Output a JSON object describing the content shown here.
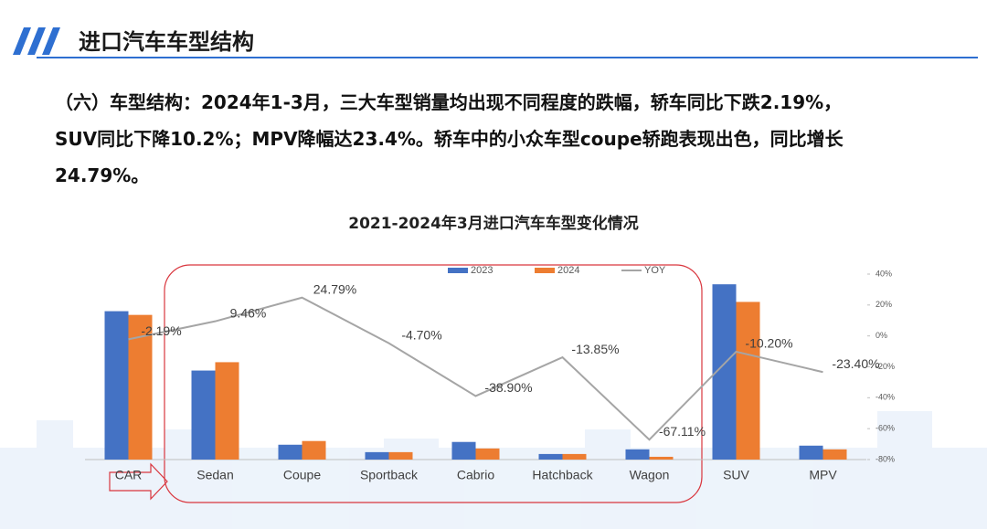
{
  "header": {
    "title": "进口汽车车型结构"
  },
  "paragraph": {
    "lines": [
      "（六）车型结构：2024年1-3月，三大车型销量均出现不同程度的跌幅，轿车同比下跌2.19%，",
      "SUV同比下降10.2%；MPV降幅达23.4%。轿车中的小众车型coupe轿跑表现出色，同比增长",
      "24.79%。"
    ]
  },
  "chart_data": {
    "type": "bar",
    "title": "2021-2024年3月进口汽车车型变化情况",
    "categories": [
      "CAR",
      "Sedan",
      "Coupe",
      "Sportback",
      "Cabrio",
      "Hatchback",
      "Wagon",
      "SUV",
      "MPV"
    ],
    "series": [
      {
        "name": "2023",
        "color": "#4472c4",
        "values": [
          160,
          96,
          16,
          8,
          19,
          6,
          11,
          189,
          15
        ]
      },
      {
        "name": "2024",
        "color": "#ed7d31",
        "values": [
          156,
          105,
          20,
          8,
          12,
          6,
          3,
          170,
          11
        ]
      },
      {
        "name": "YOY",
        "color": "#a5a5a5",
        "axis": "y2",
        "values": [
          -2.19,
          9.46,
          24.79,
          -4.7,
          -38.9,
          -13.85,
          -67.11,
          -10.2,
          -23.4
        ],
        "value_labels": [
          "-2.19%",
          "9.46%",
          "24.79%",
          "-4.70%",
          "-38.90%",
          "-13.85%",
          "-67.11%",
          "-10.20%",
          "-23.40%"
        ]
      }
    ],
    "ylim": [
      0,
      200
    ],
    "y2lim": [
      -80,
      40
    ],
    "y2ticks": [
      {
        "value": 40,
        "label": "40%"
      },
      {
        "value": 20,
        "label": "20%"
      },
      {
        "value": 0,
        "label": "0%"
      },
      {
        "value": -20,
        "label": "-20%"
      },
      {
        "value": -40,
        "label": "-40%"
      },
      {
        "value": -60,
        "label": "-60%"
      },
      {
        "value": -80,
        "label": "-80%"
      }
    ],
    "legend": "top"
  }
}
